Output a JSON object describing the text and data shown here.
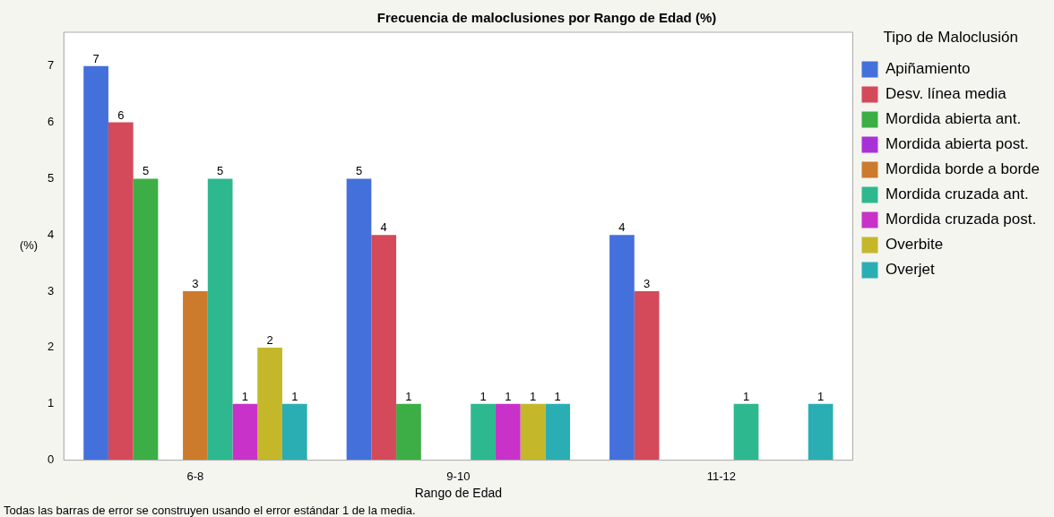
{
  "chart_data": {
    "type": "bar",
    "title": "Frecuencia de maloclusiones por Rango de Edad (%)",
    "xlabel": "Rango de Edad",
    "ylabel": "(%)",
    "legend_title": "Tipo de Maloclusión",
    "categories": [
      "6-8",
      "9-10",
      "11-12"
    ],
    "series": [
      {
        "name": "Apiñamiento",
        "color": "#4470dc",
        "values": [
          7,
          5,
          4
        ]
      },
      {
        "name": "Desv. línea media",
        "color": "#d44a5a",
        "values": [
          6,
          4,
          3
        ]
      },
      {
        "name": "Mordida abierta ant.",
        "color": "#3cae45",
        "values": [
          5,
          1,
          null
        ]
      },
      {
        "name": "Mordida abierta post.",
        "color": "#a832d8",
        "values": [
          null,
          null,
          null
        ]
      },
      {
        "name": "Mordida borde a borde",
        "color": "#cc7a2c",
        "values": [
          3,
          null,
          null
        ]
      },
      {
        "name": "Mordida cruzada ant.",
        "color": "#2db890",
        "values": [
          5,
          1,
          1
        ]
      },
      {
        "name": "Mordida cruzada post.",
        "color": "#c832c8",
        "values": [
          1,
          1,
          null
        ]
      },
      {
        "name": "Overbite",
        "color": "#c4b82a",
        "values": [
          2,
          1,
          null
        ]
      },
      {
        "name": "Overjet",
        "color": "#2aaeb4",
        "values": [
          1,
          1,
          1
        ]
      }
    ],
    "ylim": [
      0,
      7.6
    ],
    "yticks": [
      0,
      1,
      2,
      3,
      4,
      5,
      6,
      7
    ],
    "grid": false,
    "legend": "right",
    "data_labels": true,
    "annotations": [
      "Todas las barras de error se construyen usando el error estándar 1 de la media."
    ]
  }
}
